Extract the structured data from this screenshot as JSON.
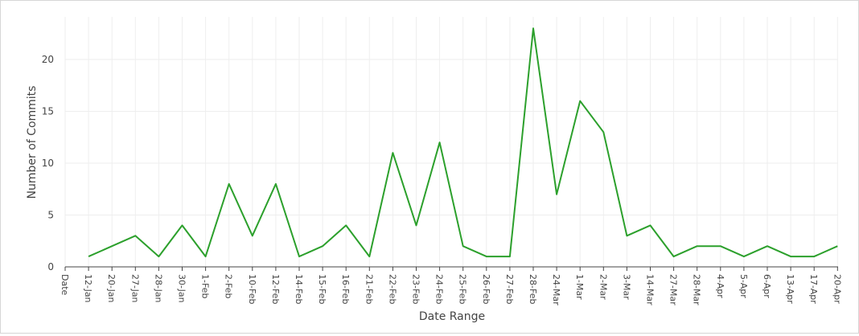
{
  "chart_data": {
    "type": "line",
    "title": "",
    "xlabel": "Date Range",
    "ylabel": "Number of Commits",
    "ylim": [
      0,
      24
    ],
    "yticks": [
      0,
      5,
      10,
      15,
      20
    ],
    "grid": true,
    "line_color": "#2ca02c",
    "categories": [
      "Date",
      "12-Jan",
      "20-Jan",
      "27-Jan",
      "28-Jan",
      "30-Jan",
      "1-Feb",
      "2-Feb",
      "10-Feb",
      "12-Feb",
      "14-Feb",
      "15-Feb",
      "16-Feb",
      "21-Feb",
      "22-Feb",
      "23-Feb",
      "24-Feb",
      "25-Feb",
      "26-Feb",
      "27-Feb",
      "28-Feb",
      "24-Mar",
      "1-Mar",
      "2-Mar",
      "3-Mar",
      "14-Mar",
      "27-Mar",
      "28-Mar",
      "4-Apr",
      "5-Apr",
      "6-Apr",
      "13-Apr",
      "17-Apr",
      "20-Apr"
    ],
    "values": [
      null,
      1,
      2,
      3,
      1,
      4,
      1,
      8,
      3,
      8,
      1,
      2,
      4,
      1,
      11,
      4,
      12,
      2,
      1,
      1,
      23,
      7,
      16,
      13,
      3,
      4,
      1,
      2,
      2,
      1,
      2,
      1,
      1,
      2
    ]
  }
}
